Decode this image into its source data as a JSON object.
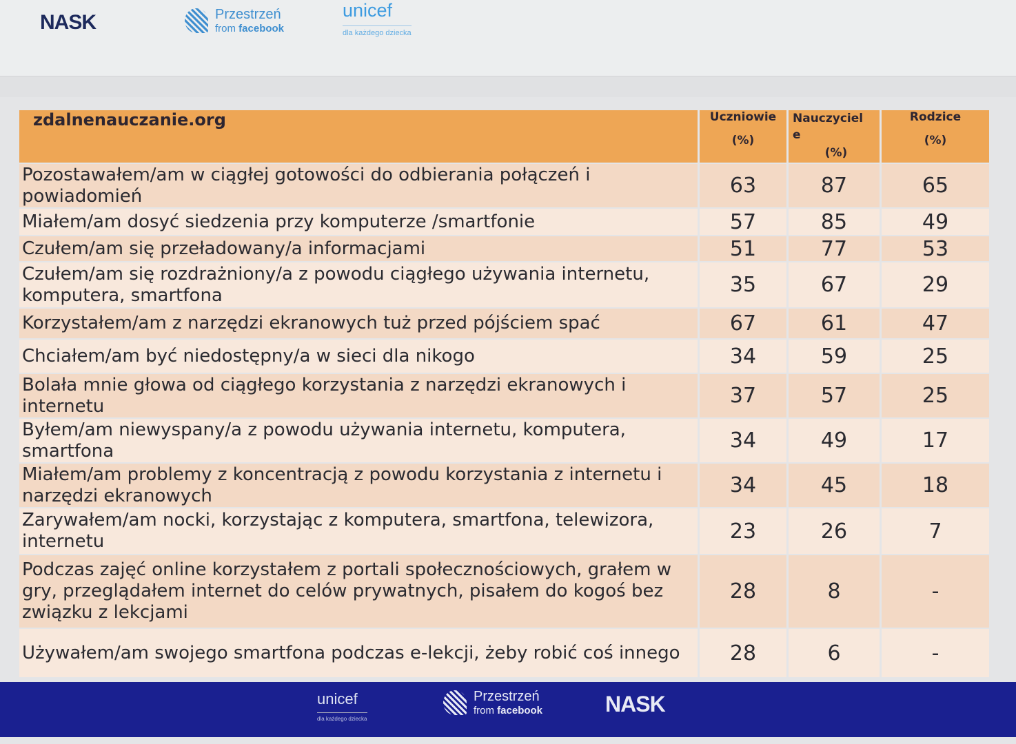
{
  "logos_top": {
    "nask": "NASK",
    "fb_line1": "Przestrzeń",
    "fb_from": "from",
    "fb_brand": "facebook",
    "unicef": "unicef",
    "unicef_tagline": "dla każdego dziecka"
  },
  "table": {
    "headers": {
      "site": "zdalnenauczanie.org",
      "col1": "Uczniowie",
      "col2": "Nauczyciele",
      "col3": "Rodzice",
      "unit": "(%)"
    },
    "rows": [
      {
        "label": "Pozostawałem/am w ciągłej gotowości do odbierania połączeń i powiadomień",
        "u": "63",
        "n": "87",
        "r": "65"
      },
      {
        "label": "Miałem/am dosyć siedzenia przy komputerze /smartfonie",
        "u": "57",
        "n": "85",
        "r": "49"
      },
      {
        "label": "Czułem/am się przeładowany/a informacjami",
        "u": "51",
        "n": "77",
        "r": "53"
      },
      {
        "label": "Czułem/am się rozdrażniony/a z powodu ciągłego używania internetu, komputera, smartfona",
        "u": "35",
        "n": "67",
        "r": "29"
      },
      {
        "label": "Korzystałem/am z narzędzi ekranowych tuż przed pójściem spać",
        "u": "67",
        "n": "61",
        "r": "47"
      },
      {
        "label": "Chciałem/am być niedostępny/a w sieci dla nikogo",
        "u": "34",
        "n": "59",
        "r": "25"
      },
      {
        "label": "Bolała mnie głowa od ciągłego korzystania z narzędzi ekranowych i internetu",
        "u": "37",
        "n": "57",
        "r": "25"
      },
      {
        "label": "Byłem/am niewyspany/a z powodu używania internetu, komputera, smartfona",
        "u": "34",
        "n": "49",
        "r": "17"
      },
      {
        "label": "Miałem/am problemy z koncentracją z powodu korzystania z internetu i narzędzi ekranowych",
        "u": "34",
        "n": "45",
        "r": "18"
      },
      {
        "label": "Zarywałem/am nocki, korzystając z komputera, smartfona, telewizora, internetu",
        "u": "23",
        "n": "26",
        "r": "7"
      },
      {
        "label": "Podczas zajęć online korzystałem z portali społecznościowych, grałem w gry, przeglądałem internet do celów prywatnych, pisałem do kogoś bez związku z lekcjami",
        "u": "28",
        "n": "8",
        "r": "-"
      },
      {
        "label": "Używałem/am swojego smartfona podczas e-lekcji, żeby robić coś innego",
        "u": "28",
        "n": "6",
        "r": "-"
      }
    ]
  },
  "logos_footer": {
    "unicef": "unicef",
    "unicef_tagline": "dla każdego dziecka",
    "fb_line1": "Przestrzeń",
    "fb_from": "from",
    "fb_brand": "facebook",
    "nask": "NASK"
  },
  "colors": {
    "header": "#eea655",
    "row_odd": "#f3d9c5",
    "row_even": "#f8e8dc",
    "footer": "#1a2090"
  }
}
